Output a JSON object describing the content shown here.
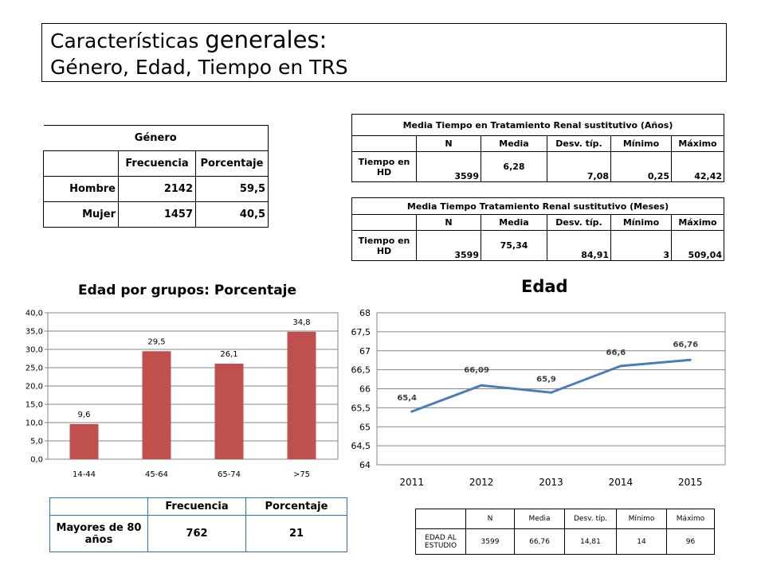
{
  "title": {
    "line1_a": "Características ",
    "line1_b": "generales:",
    "line2": "Género, Edad,  Tiempo en TRS"
  },
  "gender_table": {
    "caption": "Género",
    "headers": [
      "",
      "Frecuencia",
      "Porcentaje"
    ],
    "rows": [
      {
        "label": "Hombre",
        "freq": "2142",
        "pct": "59,5"
      },
      {
        "label": "Mujer",
        "freq": "1457",
        "pct": "40,5"
      }
    ]
  },
  "years_table": {
    "caption": "Media Tiempo en Tratamiento Renal sustitutivo (Años)",
    "headers": [
      "",
      "N",
      "Media",
      "Desv. típ.",
      "Mínimo",
      "Máximo"
    ],
    "row": {
      "label": "Tiempo en HD",
      "n": "3599",
      "media": "6,28",
      "desv": "7,08",
      "min": "0,25",
      "max": "42,42"
    }
  },
  "months_table": {
    "caption": "Media Tiempo Tratamiento Renal sustitutivo (Meses)",
    "headers": [
      "",
      "N",
      "Media",
      "Desv. típ.",
      "Mínimo",
      "Máximo"
    ],
    "row": {
      "label": "Tiempo en HD",
      "n": "3599",
      "media": "75,34",
      "desv": "84,91",
      "min": "3",
      "max": "509,04"
    }
  },
  "chart_data": [
    {
      "type": "bar",
      "title": "Edad por grupos: Porcentaje",
      "categories": [
        "14-44",
        "45-64",
        "65-74",
        ">75"
      ],
      "values": [
        9.6,
        29.5,
        26.1,
        34.8
      ],
      "value_labels": [
        "9,6",
        "29,5",
        "26,1",
        "34,8"
      ],
      "yticks": [
        "0,0",
        "5,0",
        "10,0",
        "15,0",
        "20,0",
        "25,0",
        "30,0",
        "35,0",
        "40,0"
      ],
      "ylim": [
        0,
        40
      ],
      "grid": true,
      "color": "#c0504d"
    },
    {
      "type": "line",
      "title": "Edad",
      "x": [
        "2011",
        "2012",
        "2013",
        "2014",
        "2015"
      ],
      "values": [
        65.4,
        66.09,
        65.9,
        66.6,
        66.76
      ],
      "value_labels": [
        "65,4",
        "66,09",
        "65,9",
        "66,6",
        "66,76"
      ],
      "yticks": [
        "64",
        "64,5",
        "65",
        "65,5",
        "66",
        "66,5",
        "67",
        "67,5",
        "68"
      ],
      "ylim": [
        64,
        68
      ],
      "grid": true,
      "color": "#4a7ebb"
    }
  ],
  "elder_table": {
    "headers": [
      "",
      "Frecuencia",
      "Porcentaje"
    ],
    "row": {
      "label": "Mayores de  80 años",
      "freq": "762",
      "pct": "21"
    }
  },
  "age_table": {
    "headers": [
      "",
      "N",
      "Media",
      "Desv. típ.",
      "Mínimo",
      "Máximo"
    ],
    "row": {
      "label": "EDAD AL ESTUDIO",
      "n": "3599",
      "media": "66,76",
      "desv": "14,81",
      "min": "14",
      "max": "96"
    }
  }
}
